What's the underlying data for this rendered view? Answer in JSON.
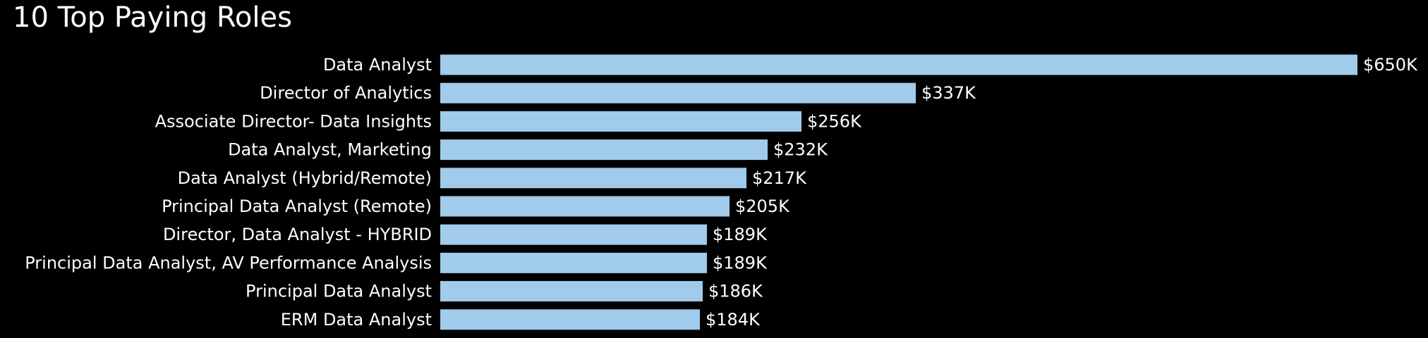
{
  "chart_data": {
    "type": "bar",
    "orientation": "horizontal",
    "title": "10 Top Paying Roles",
    "xlabel": "",
    "ylabel": "",
    "grid": false,
    "bar_color": "#a1cbea",
    "background_color": "#000000",
    "text_color": "#ffffff",
    "categories": [
      "Data Analyst",
      "Director of Analytics",
      "Associate Director- Data Insights",
      "Data Analyst, Marketing",
      "Data Analyst (Hybrid/Remote)",
      "Principal Data Analyst (Remote)",
      "Director, Data Analyst - HYBRID",
      "Principal Data Analyst, AV Performance Analysis",
      "Principal Data Analyst",
      "ERM Data Analyst"
    ],
    "values": [
      650000,
      337000,
      256000,
      232000,
      217000,
      205000,
      189000,
      189000,
      186000,
      184000
    ],
    "value_labels": [
      "$650K",
      "$337K",
      "$256K",
      "$232K",
      "$217K",
      "$205K",
      "$189K",
      "$189K",
      "$186K",
      "$184K"
    ]
  }
}
